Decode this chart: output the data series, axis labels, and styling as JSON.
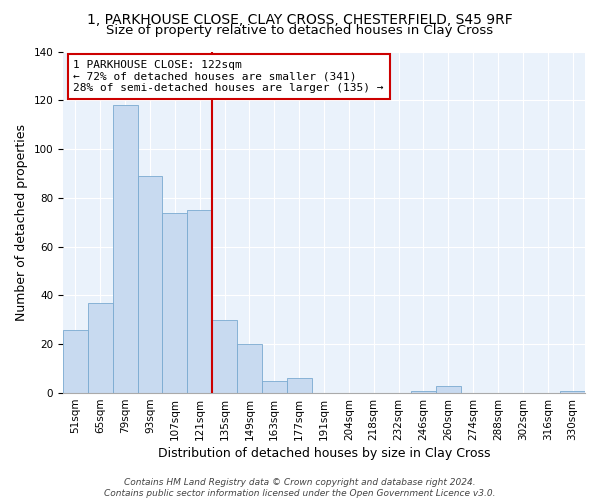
{
  "title": "1, PARKHOUSE CLOSE, CLAY CROSS, CHESTERFIELD, S45 9RF",
  "subtitle": "Size of property relative to detached houses in Clay Cross",
  "xlabel": "Distribution of detached houses by size in Clay Cross",
  "ylabel": "Number of detached properties",
  "bin_labels": [
    "51sqm",
    "65sqm",
    "79sqm",
    "93sqm",
    "107sqm",
    "121sqm",
    "135sqm",
    "149sqm",
    "163sqm",
    "177sqm",
    "191sqm",
    "204sqm",
    "218sqm",
    "232sqm",
    "246sqm",
    "260sqm",
    "274sqm",
    "288sqm",
    "302sqm",
    "316sqm",
    "330sqm"
  ],
  "bar_heights": [
    26,
    37,
    118,
    89,
    74,
    75,
    30,
    20,
    5,
    6,
    0,
    0,
    0,
    0,
    1,
    3,
    0,
    0,
    0,
    0,
    1
  ],
  "bar_color": "#c8daf0",
  "bar_edge_color": "#7aaad0",
  "vline_x": 5.5,
  "vline_color": "#cc0000",
  "annotation_text": "1 PARKHOUSE CLOSE: 122sqm\n← 72% of detached houses are smaller (341)\n28% of semi-detached houses are larger (135) →",
  "annotation_box_edge": "#cc0000",
  "ylim": [
    0,
    140
  ],
  "yticks": [
    0,
    20,
    40,
    60,
    80,
    100,
    120,
    140
  ],
  "footer_text": "Contains HM Land Registry data © Crown copyright and database right 2024.\nContains public sector information licensed under the Open Government Licence v3.0.",
  "title_fontsize": 10,
  "subtitle_fontsize": 9.5,
  "axis_label_fontsize": 9,
  "tick_fontsize": 7.5,
  "annotation_fontsize": 8,
  "footer_fontsize": 6.5
}
